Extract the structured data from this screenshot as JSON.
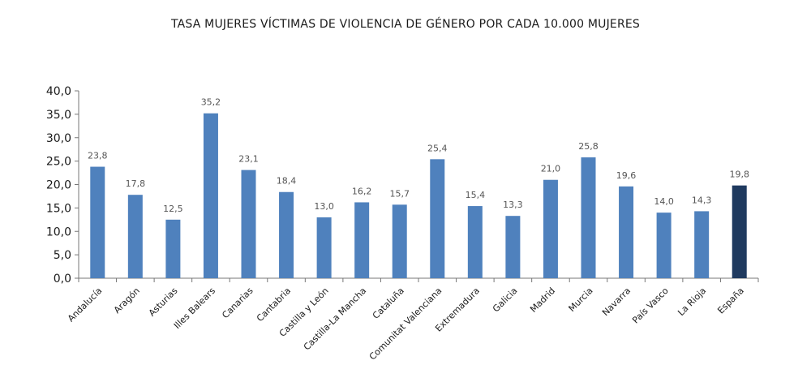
{
  "chart_data": {
    "type": "bar",
    "title": "TASA MUJERES VÍCTIMAS DE VIOLENCIA DE GÉNERO POR CADA 10.000 MUJERES",
    "categories": [
      "Andalucía",
      "Aragón",
      "Asturias",
      "Illes Balears",
      "Canarias",
      "Cantabria",
      "Castilla y León",
      "Castilla-La Mancha",
      "Cataluña",
      "Comunitat Valenciana",
      "Extremadura",
      "Galicia",
      "Madrid",
      "Murcia",
      "Navarra",
      "País Vasco",
      "La Rioja",
      "España"
    ],
    "values": [
      23.8,
      17.8,
      12.5,
      35.2,
      23.1,
      18.4,
      13.0,
      16.2,
      15.7,
      25.4,
      15.4,
      13.3,
      21.0,
      25.8,
      19.6,
      14.0,
      14.3,
      19.8
    ],
    "value_labels": [
      "23,8",
      "17,8",
      "12,5",
      "35,2",
      "23,1",
      "18,4",
      "13,0",
      "16,2",
      "15,7",
      "25,4",
      "15,4",
      "13,3",
      "21,0",
      "25,8",
      "19,6",
      "14,0",
      "14,3",
      "19,8"
    ],
    "y_ticks": [
      "0,0",
      "5,0",
      "10,0",
      "15,0",
      "20,0",
      "25,0",
      "30,0",
      "35,0",
      "40,0"
    ],
    "ylim": [
      0,
      40
    ],
    "grid": false,
    "bar_color": "#4f81bd",
    "highlight_index": 17,
    "highlight_color": "#1f3a5f"
  }
}
